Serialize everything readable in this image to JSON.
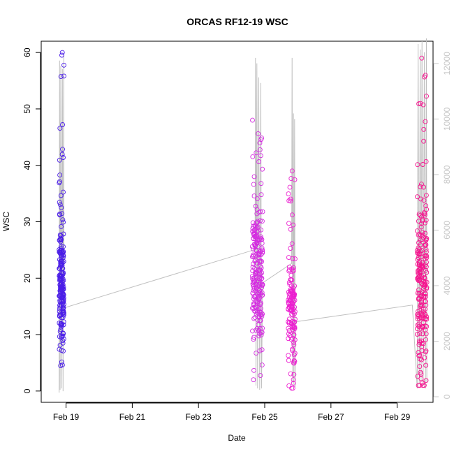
{
  "chart_data": {
    "type": "scatter",
    "title": "ORCAS RF12-19 WSC",
    "xlabel": "Date",
    "ylabel": "WSC",
    "x_axis": {
      "range": [
        "2016-02-18 06:00",
        "2016-03-01 02:00"
      ],
      "ticks": [
        {
          "value": "2016-02-19",
          "label": "Feb 19"
        },
        {
          "value": "2016-02-21",
          "label": "Feb 21"
        },
        {
          "value": "2016-02-23",
          "label": "Feb 23"
        },
        {
          "value": "2016-02-25",
          "label": "Feb 25"
        },
        {
          "value": "2016-02-27",
          "label": "Feb 27"
        },
        {
          "value": "2016-02-29",
          "label": "Feb 29"
        }
      ]
    },
    "y_axis": {
      "range": [
        -2,
        62
      ],
      "ticks": [
        0,
        10,
        20,
        30,
        40,
        50,
        60
      ]
    },
    "y2_axis": {
      "description": "secondary axis for grey altitude trace",
      "range": [
        -200,
        12800
      ],
      "ticks": [
        0,
        2000,
        4000,
        6000,
        8000,
        10000,
        12000
      ],
      "color": "#c8c8c8"
    },
    "grid": false,
    "legend": "none",
    "colors": {
      "rf12": "#4b1ee8",
      "rf13": "#d42de0",
      "rf14": "#ec1fd0",
      "rf15": "#f5158f",
      "trace": "#c0c0c0"
    },
    "flights": [
      {
        "start": "2016-02-18 19:00",
        "end": "2016-02-18 22:30",
        "center": 18.5,
        "spread": 10,
        "ymin": 4.5,
        "ymax": 60,
        "count": 210,
        "color": "#4b1ee8"
      },
      {
        "start": "2016-02-24 15:00",
        "end": "2016-02-24 22:30",
        "center": 20,
        "spread": 11,
        "ymin": 2,
        "ymax": 48,
        "count": 230,
        "color": "#d42de0"
      },
      {
        "start": "2016-02-25 17:00",
        "end": "2016-02-25 22:00",
        "center": 14,
        "spread": 9,
        "ymin": 0.5,
        "ymax": 39,
        "count": 140,
        "color": "#ec1fd0"
      },
      {
        "start": "2016-02-29 14:30",
        "end": "2016-02-29 21:30",
        "center": 18,
        "spread": 14,
        "ymin": 1,
        "ymax": 59,
        "count": 220,
        "color": "#f5158f"
      }
    ],
    "trace": [
      {
        "x": "2016-02-18 19:00",
        "y": 150
      },
      {
        "x": "2016-02-18 19:20",
        "y": 12100
      },
      {
        "x": "2016-02-18 19:40",
        "y": 250
      },
      {
        "x": "2016-02-18 20:10",
        "y": 11900
      },
      {
        "x": "2016-02-18 20:40",
        "y": 300
      },
      {
        "x": "2016-02-18 21:20",
        "y": 11800
      },
      {
        "x": "2016-02-18 21:50",
        "y": 200
      },
      {
        "x": "2016-02-18 22:20",
        "y": 12300
      },
      {
        "x": "2016-02-18 22:30",
        "y": 3200
      },
      {
        "x": "2016-02-24 17:00",
        "y": 5300
      },
      {
        "x": "2016-02-24 17:20",
        "y": 12200
      },
      {
        "x": "2016-02-24 17:40",
        "y": 400
      },
      {
        "x": "2016-02-24 18:20",
        "y": 12000
      },
      {
        "x": "2016-02-24 18:50",
        "y": 300
      },
      {
        "x": "2016-02-24 19:40",
        "y": 11500
      },
      {
        "x": "2016-02-24 20:20",
        "y": 250
      },
      {
        "x": "2016-02-24 21:10",
        "y": 11300
      },
      {
        "x": "2016-02-24 21:40",
        "y": 300
      },
      {
        "x": "2016-02-24 22:30",
        "y": 4100
      },
      {
        "x": "2016-02-25 19:30",
        "y": 4800
      },
      {
        "x": "2016-02-25 19:50",
        "y": 12200
      },
      {
        "x": "2016-02-25 20:20",
        "y": 500
      },
      {
        "x": "2016-02-25 20:50",
        "y": 10200
      },
      {
        "x": "2016-02-25 21:10",
        "y": 400
      },
      {
        "x": "2016-02-25 21:40",
        "y": 10000
      },
      {
        "x": "2016-02-25 22:00",
        "y": 350
      },
      {
        "x": "2016-02-25 22:10",
        "y": 2700
      },
      {
        "x": "2016-02-29 11:00",
        "y": 3300
      },
      {
        "x": "2016-02-29 14:30",
        "y": 300
      },
      {
        "x": "2016-02-29 15:10",
        "y": 12700
      },
      {
        "x": "2016-02-29 16:00",
        "y": 500
      },
      {
        "x": "2016-02-29 16:40",
        "y": 12500
      },
      {
        "x": "2016-02-29 17:20",
        "y": 600
      },
      {
        "x": "2016-02-29 18:00",
        "y": 12800
      },
      {
        "x": "2016-02-29 18:50",
        "y": 400
      },
      {
        "x": "2016-02-29 19:40",
        "y": 12400
      },
      {
        "x": "2016-02-29 20:30",
        "y": 300
      },
      {
        "x": "2016-02-29 21:10",
        "y": 12900
      },
      {
        "x": "2016-02-29 21:30",
        "y": 500
      }
    ]
  }
}
